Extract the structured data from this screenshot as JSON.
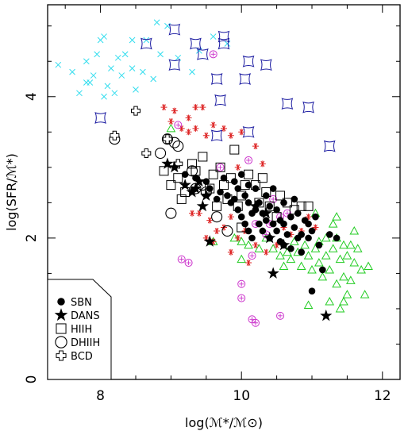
{
  "chart_data": {
    "type": "scatter",
    "title": "",
    "xlabel": "log(ℳ*/ℳ⊙)",
    "ylabel": "log(SFR/ℳ*)",
    "xlim": [
      7.25,
      12.25
    ],
    "ylim": [
      0,
      5.3
    ],
    "x_ticks": [
      8,
      10,
      12
    ],
    "x_tick_labels": [
      "8",
      "10",
      "12"
    ],
    "y_ticks": [
      0,
      2,
      4
    ],
    "y_tick_labels": [
      "0",
      "2",
      "4"
    ],
    "grid": false,
    "legend_placement": "bottom-left",
    "legend": [
      {
        "label": "SBN",
        "marker": "filled-circle"
      },
      {
        "label": "DANS",
        "marker": "filled-star"
      },
      {
        "label": "HIIH",
        "marker": "open-square"
      },
      {
        "label": "DHIIH",
        "marker": "open-circle"
      },
      {
        "label": "BCD",
        "marker": "open-cross"
      }
    ],
    "colors": {
      "cyan_cross": "#33ddee",
      "blue_star4": "#1a1aa0",
      "red_star": "#dd2222",
      "green_triangle": "#22cc22",
      "magenta_target": "#cc33cc",
      "black": "#000000"
    },
    "series": [
      {
        "marker": "filled-circle",
        "color": "black",
        "points": [
          [
            9.2,
            2.9
          ],
          [
            9.35,
            2.85
          ],
          [
            9.5,
            2.8
          ],
          [
            9.55,
            2.7
          ],
          [
            9.7,
            2.65
          ],
          [
            9.75,
            2.85
          ],
          [
            9.8,
            2.6
          ],
          [
            9.85,
            2.5
          ],
          [
            9.9,
            2.55
          ],
          [
            9.95,
            2.7
          ],
          [
            9.95,
            2.4
          ],
          [
            10.0,
            2.3
          ],
          [
            10.05,
            2.2
          ],
          [
            10.05,
            2.6
          ],
          [
            10.1,
            2.5
          ],
          [
            10.1,
            2.1
          ],
          [
            10.15,
            2.35
          ],
          [
            10.15,
            2.0
          ],
          [
            10.2,
            2.4
          ],
          [
            10.2,
            2.7
          ],
          [
            10.25,
            2.2
          ],
          [
            10.25,
            2.5
          ],
          [
            10.3,
            2.1
          ],
          [
            10.3,
            2.35
          ],
          [
            10.35,
            2.6
          ],
          [
            10.35,
            2.25
          ],
          [
            10.4,
            2.0
          ],
          [
            10.4,
            2.45
          ],
          [
            10.45,
            2.2
          ],
          [
            10.45,
            2.7
          ],
          [
            10.5,
            2.1
          ],
          [
            10.5,
            2.4
          ],
          [
            10.55,
            2.25
          ],
          [
            10.55,
            1.95
          ],
          [
            10.6,
            2.2
          ],
          [
            10.6,
            2.5
          ],
          [
            10.65,
            2.05
          ],
          [
            10.7,
            2.3
          ],
          [
            10.7,
            1.85
          ],
          [
            10.75,
            2.15
          ],
          [
            10.8,
            2.0
          ],
          [
            10.8,
            2.35
          ],
          [
            10.85,
            2.05
          ],
          [
            10.85,
            1.8
          ],
          [
            10.9,
            2.25
          ],
          [
            10.95,
            2.0
          ],
          [
            10.95,
            2.2
          ],
          [
            11.0,
            2.1
          ],
          [
            11.05,
            2.3
          ],
          [
            11.1,
            1.9
          ],
          [
            11.15,
            1.55
          ],
          [
            11.25,
            2.05
          ],
          [
            11.35,
            2.0
          ],
          [
            11.0,
            1.25
          ],
          [
            10.0,
            2.9
          ],
          [
            9.9,
            2.8
          ],
          [
            10.1,
            2.75
          ],
          [
            9.65,
            2.55
          ],
          [
            10.75,
            2.55
          ],
          [
            10.6,
            1.9
          ]
        ]
      },
      {
        "marker": "filled-star",
        "color": "black",
        "points": [
          [
            8.95,
            3.05
          ],
          [
            9.05,
            3.0
          ],
          [
            9.2,
            2.75
          ],
          [
            9.3,
            2.65
          ],
          [
            9.4,
            2.8
          ],
          [
            9.5,
            2.6
          ],
          [
            9.45,
            2.45
          ],
          [
            9.35,
            2.7
          ],
          [
            9.55,
            1.95
          ],
          [
            10.35,
            2.35
          ],
          [
            10.4,
            2.0
          ],
          [
            10.45,
            1.5
          ],
          [
            10.6,
            1.9
          ],
          [
            10.2,
            2.45
          ],
          [
            11.2,
            0.9
          ]
        ]
      },
      {
        "marker": "open-square",
        "color": "black",
        "points": [
          [
            8.9,
            2.95
          ],
          [
            9.0,
            2.75
          ],
          [
            9.1,
            2.85
          ],
          [
            9.2,
            2.65
          ],
          [
            9.3,
            3.05
          ],
          [
            9.45,
            3.15
          ],
          [
            9.6,
            2.9
          ],
          [
            9.7,
            3.0
          ],
          [
            9.75,
            2.75
          ],
          [
            9.85,
            2.85
          ],
          [
            9.9,
            3.25
          ],
          [
            9.8,
            2.55
          ],
          [
            9.95,
            2.45
          ],
          [
            10.0,
            2.6
          ],
          [
            10.1,
            2.9
          ],
          [
            10.2,
            2.75
          ],
          [
            10.25,
            2.5
          ],
          [
            10.35,
            2.65
          ],
          [
            10.4,
            2.45
          ],
          [
            10.5,
            2.3
          ],
          [
            10.55,
            2.6
          ],
          [
            10.65,
            2.5
          ],
          [
            10.75,
            2.4
          ],
          [
            10.85,
            2.45
          ],
          [
            10.95,
            2.45
          ],
          [
            9.35,
            2.95
          ],
          [
            9.15,
            2.55
          ],
          [
            9.55,
            2.7
          ],
          [
            9.65,
            2.45
          ],
          [
            10.0,
            2.15
          ],
          [
            10.05,
            2.75
          ],
          [
            10.3,
            2.85
          ]
        ]
      },
      {
        "marker": "open-circle",
        "color": "black",
        "points": [
          [
            8.2,
            3.4
          ],
          [
            8.85,
            3.2
          ],
          [
            8.95,
            3.4
          ],
          [
            9.05,
            3.35
          ],
          [
            9.1,
            3.3
          ],
          [
            9.3,
            2.95
          ],
          [
            9.35,
            2.7
          ],
          [
            9.5,
            2.65
          ],
          [
            9.45,
            2.75
          ],
          [
            9.0,
            2.35
          ],
          [
            9.8,
            2.1
          ],
          [
            9.65,
            2.3
          ]
        ]
      },
      {
        "marker": "open-cross",
        "color": "black",
        "points": [
          [
            8.2,
            3.45
          ],
          [
            8.5,
            3.8
          ],
          [
            8.65,
            3.2
          ],
          [
            8.95,
            3.4
          ],
          [
            9.1,
            3.05
          ]
        ]
      },
      {
        "marker": "cross",
        "color": "cyan_cross",
        "points": [
          [
            7.4,
            4.45
          ],
          [
            7.6,
            4.35
          ],
          [
            7.7,
            4.05
          ],
          [
            7.8,
            4.2
          ],
          [
            7.8,
            4.5
          ],
          [
            7.9,
            4.3
          ],
          [
            7.95,
            4.6
          ],
          [
            8.0,
            4.8
          ],
          [
            8.05,
            4.85
          ],
          [
            8.05,
            4.0
          ],
          [
            8.1,
            4.15
          ],
          [
            8.15,
            4.4
          ],
          [
            8.25,
            4.55
          ],
          [
            8.3,
            4.3
          ],
          [
            8.35,
            4.6
          ],
          [
            8.45,
            4.8
          ],
          [
            8.45,
            4.4
          ],
          [
            8.5,
            4.1
          ],
          [
            8.6,
            4.35
          ],
          [
            8.65,
            4.8
          ],
          [
            8.75,
            4.25
          ],
          [
            8.8,
            5.05
          ],
          [
            8.85,
            4.6
          ],
          [
            8.95,
            5.0
          ],
          [
            9.1,
            4.55
          ],
          [
            9.3,
            4.35
          ],
          [
            9.4,
            4.65
          ],
          [
            9.6,
            4.85
          ],
          [
            9.8,
            4.75
          ],
          [
            8.2,
            4.05
          ],
          [
            7.85,
            4.2
          ]
        ]
      },
      {
        "marker": "star4",
        "color": "blue_star4",
        "points": [
          [
            8.0,
            3.7
          ],
          [
            8.65,
            4.75
          ],
          [
            9.05,
            4.95
          ],
          [
            9.05,
            4.45
          ],
          [
            9.35,
            4.75
          ],
          [
            9.45,
            4.6
          ],
          [
            9.65,
            4.25
          ],
          [
            9.75,
            4.85
          ],
          [
            9.75,
            4.75
          ],
          [
            9.7,
            3.95
          ],
          [
            9.65,
            3.45
          ],
          [
            10.1,
            4.5
          ],
          [
            10.05,
            4.25
          ],
          [
            10.1,
            3.5
          ],
          [
            10.35,
            4.45
          ],
          [
            10.65,
            3.9
          ],
          [
            10.95,
            3.85
          ],
          [
            11.25,
            3.3
          ]
        ]
      },
      {
        "marker": "asterisk",
        "color": "red_star",
        "points": [
          [
            8.9,
            3.85
          ],
          [
            9.05,
            3.8
          ],
          [
            9.25,
            3.7
          ],
          [
            9.35,
            3.85
          ],
          [
            9.45,
            3.85
          ],
          [
            9.6,
            3.6
          ],
          [
            9.75,
            3.55
          ],
          [
            9.85,
            3.45
          ],
          [
            9.5,
            3.45
          ],
          [
            9.35,
            3.55
          ],
          [
            9.25,
            3.5
          ],
          [
            9.15,
            3.55
          ],
          [
            9.0,
            3.65
          ],
          [
            10.0,
            3.5
          ],
          [
            10.2,
            3.3
          ],
          [
            10.3,
            3.05
          ],
          [
            9.95,
            3.0
          ],
          [
            9.3,
            2.35
          ],
          [
            9.55,
            2.25
          ],
          [
            9.75,
            2.15
          ],
          [
            9.85,
            2.3
          ],
          [
            9.95,
            2.0
          ],
          [
            10.05,
            2.1
          ],
          [
            10.2,
            1.9
          ],
          [
            10.35,
            1.8
          ],
          [
            10.5,
            1.9
          ],
          [
            10.6,
            2.15
          ],
          [
            10.7,
            2.05
          ],
          [
            10.85,
            2.1
          ],
          [
            10.95,
            2.3
          ],
          [
            11.05,
            2.15
          ],
          [
            9.6,
            1.95
          ],
          [
            9.85,
            1.8
          ],
          [
            9.5,
            2.0
          ],
          [
            10.1,
            1.65
          ],
          [
            9.4,
            2.35
          ],
          [
            9.65,
            2.1
          ]
        ]
      },
      {
        "marker": "open-triangle",
        "color": "green_triangle",
        "points": [
          [
            9.0,
            3.55
          ],
          [
            9.6,
            1.95
          ],
          [
            9.9,
            2.0
          ],
          [
            10.0,
            1.95
          ],
          [
            10.1,
            1.9
          ],
          [
            10.25,
            1.85
          ],
          [
            10.35,
            2.0
          ],
          [
            10.45,
            1.85
          ],
          [
            10.55,
            1.75
          ],
          [
            10.6,
            1.6
          ],
          [
            10.7,
            1.7
          ],
          [
            10.75,
            1.95
          ],
          [
            10.8,
            1.8
          ],
          [
            10.85,
            1.6
          ],
          [
            10.9,
            1.9
          ],
          [
            10.95,
            1.75
          ],
          [
            11.0,
            1.55
          ],
          [
            11.05,
            1.85
          ],
          [
            11.1,
            1.65
          ],
          [
            11.1,
            1.95
          ],
          [
            11.15,
            1.45
          ],
          [
            11.2,
            1.75
          ],
          [
            11.2,
            2.0
          ],
          [
            11.25,
            1.55
          ],
          [
            11.3,
            1.85
          ],
          [
            11.35,
            1.35
          ],
          [
            11.35,
            2.0
          ],
          [
            11.4,
            1.7
          ],
          [
            11.45,
            1.9
          ],
          [
            11.45,
            1.45
          ],
          [
            11.5,
            1.75
          ],
          [
            11.5,
            1.2
          ],
          [
            11.55,
            1.9
          ],
          [
            11.55,
            1.4
          ],
          [
            11.6,
            1.65
          ],
          [
            11.65,
            1.85
          ],
          [
            11.7,
            1.55
          ],
          [
            11.75,
            1.2
          ],
          [
            10.95,
            1.05
          ],
          [
            11.25,
            1.1
          ],
          [
            11.45,
            1.1
          ],
          [
            11.05,
            2.35
          ],
          [
            11.3,
            2.2
          ],
          [
            11.35,
            2.3
          ],
          [
            11.6,
            2.1
          ],
          [
            10.0,
            1.7
          ],
          [
            10.65,
            1.8
          ],
          [
            11.4,
            1.0
          ],
          [
            11.8,
            1.6
          ]
        ]
      },
      {
        "marker": "target",
        "color": "magenta_target",
        "points": [
          [
            9.6,
            4.6
          ],
          [
            9.1,
            3.6
          ],
          [
            9.7,
            3.0
          ],
          [
            10.1,
            3.1
          ],
          [
            10.45,
            2.55
          ],
          [
            10.55,
            2.3
          ],
          [
            10.35,
            2.05
          ],
          [
            10.15,
            1.75
          ],
          [
            10.2,
            2.2
          ],
          [
            9.15,
            1.7
          ],
          [
            9.25,
            1.65
          ],
          [
            10.0,
            1.35
          ],
          [
            10.0,
            1.15
          ],
          [
            10.15,
            0.85
          ],
          [
            10.2,
            0.8
          ],
          [
            10.55,
            0.9
          ],
          [
            10.65,
            2.35
          ],
          [
            10.4,
            2.2
          ]
        ]
      }
    ]
  }
}
